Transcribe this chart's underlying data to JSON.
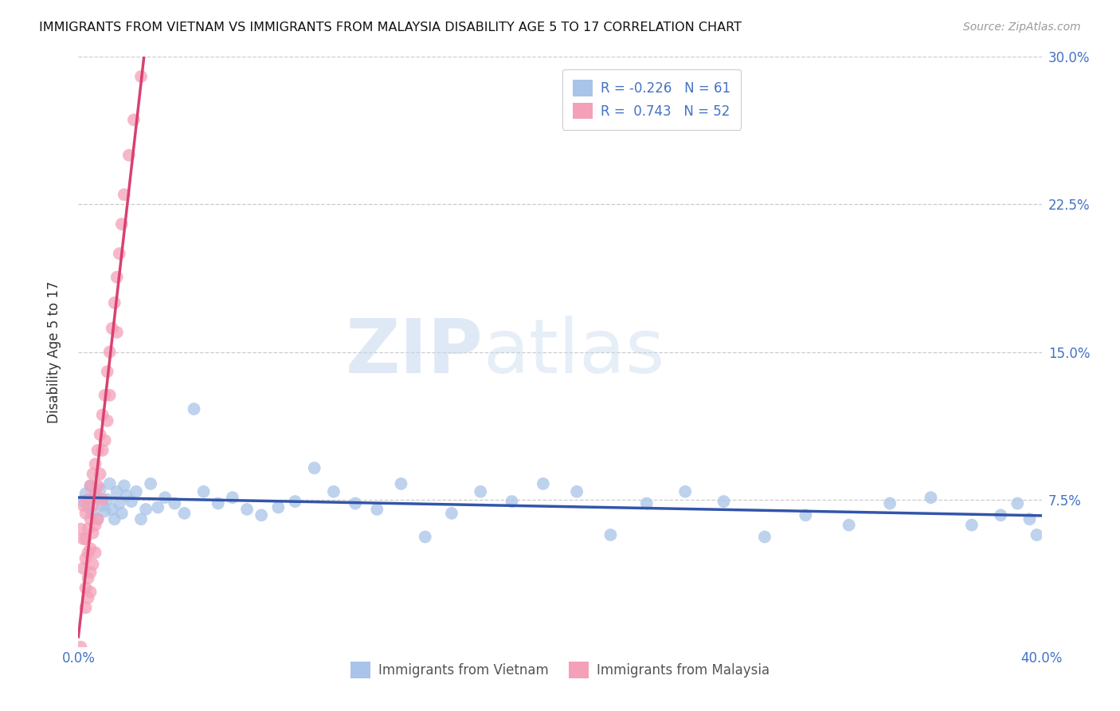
{
  "title": "IMMIGRANTS FROM VIETNAM VS IMMIGRANTS FROM MALAYSIA DISABILITY AGE 5 TO 17 CORRELATION CHART",
  "source": "Source: ZipAtlas.com",
  "ylabel": "Disability Age 5 to 17",
  "xlim": [
    0.0,
    0.4
  ],
  "ylim": [
    0.0,
    0.3
  ],
  "xticks": [
    0.0,
    0.1,
    0.2,
    0.3,
    0.4
  ],
  "xticklabels": [
    "0.0%",
    "",
    "",
    "",
    "40.0%"
  ],
  "yticks_right": [
    0.075,
    0.15,
    0.225,
    0.3
  ],
  "yticklabels_right": [
    "7.5%",
    "15.0%",
    "22.5%",
    "30.0%"
  ],
  "watermark_zip": "ZIP",
  "watermark_atlas": "atlas",
  "legend_R_vietnam": "-0.226",
  "legend_N_vietnam": "61",
  "legend_R_malaysia": "0.743",
  "legend_N_malaysia": "52",
  "vietnam_color": "#a8c4e8",
  "malaysia_color": "#f4a0b8",
  "vietnam_line_color": "#3355aa",
  "malaysia_line_color": "#d94070",
  "background_color": "#ffffff",
  "vietnam_scatter_x": [
    0.002,
    0.003,
    0.004,
    0.005,
    0.006,
    0.007,
    0.008,
    0.009,
    0.01,
    0.011,
    0.012,
    0.013,
    0.014,
    0.015,
    0.016,
    0.017,
    0.018,
    0.019,
    0.02,
    0.022,
    0.024,
    0.026,
    0.028,
    0.03,
    0.033,
    0.036,
    0.04,
    0.044,
    0.048,
    0.052,
    0.058,
    0.064,
    0.07,
    0.076,
    0.083,
    0.09,
    0.098,
    0.106,
    0.115,
    0.124,
    0.134,
    0.144,
    0.155,
    0.167,
    0.18,
    0.193,
    0.207,
    0.221,
    0.236,
    0.252,
    0.268,
    0.285,
    0.302,
    0.32,
    0.337,
    0.354,
    0.371,
    0.383,
    0.39,
    0.395,
    0.398
  ],
  "vietnam_scatter_y": [
    0.074,
    0.078,
    0.071,
    0.082,
    0.068,
    0.076,
    0.065,
    0.08,
    0.072,
    0.069,
    0.075,
    0.083,
    0.07,
    0.065,
    0.079,
    0.073,
    0.068,
    0.082,
    0.077,
    0.074,
    0.079,
    0.065,
    0.07,
    0.083,
    0.071,
    0.076,
    0.073,
    0.068,
    0.121,
    0.079,
    0.073,
    0.076,
    0.07,
    0.067,
    0.071,
    0.074,
    0.091,
    0.079,
    0.073,
    0.07,
    0.083,
    0.056,
    0.068,
    0.079,
    0.074,
    0.083,
    0.079,
    0.057,
    0.073,
    0.079,
    0.074,
    0.056,
    0.067,
    0.062,
    0.073,
    0.076,
    0.062,
    0.067,
    0.073,
    0.065,
    0.057
  ],
  "malaysia_scatter_x": [
    0.001,
    0.001,
    0.002,
    0.002,
    0.002,
    0.003,
    0.003,
    0.003,
    0.003,
    0.003,
    0.004,
    0.004,
    0.004,
    0.004,
    0.004,
    0.005,
    0.005,
    0.005,
    0.005,
    0.005,
    0.006,
    0.006,
    0.006,
    0.006,
    0.007,
    0.007,
    0.007,
    0.007,
    0.008,
    0.008,
    0.008,
    0.009,
    0.009,
    0.01,
    0.01,
    0.01,
    0.011,
    0.011,
    0.012,
    0.012,
    0.013,
    0.013,
    0.014,
    0.015,
    0.016,
    0.016,
    0.017,
    0.018,
    0.019,
    0.021,
    0.023,
    0.026
  ],
  "malaysia_scatter_y": [
    0.06,
    0.0,
    0.055,
    0.072,
    0.04,
    0.068,
    0.055,
    0.045,
    0.03,
    0.02,
    0.075,
    0.06,
    0.048,
    0.035,
    0.025,
    0.082,
    0.065,
    0.05,
    0.038,
    0.028,
    0.088,
    0.072,
    0.058,
    0.042,
    0.093,
    0.078,
    0.062,
    0.048,
    0.1,
    0.082,
    0.065,
    0.108,
    0.088,
    0.118,
    0.1,
    0.075,
    0.128,
    0.105,
    0.14,
    0.115,
    0.15,
    0.128,
    0.162,
    0.175,
    0.188,
    0.16,
    0.2,
    0.215,
    0.23,
    0.25,
    0.268,
    0.29
  ]
}
